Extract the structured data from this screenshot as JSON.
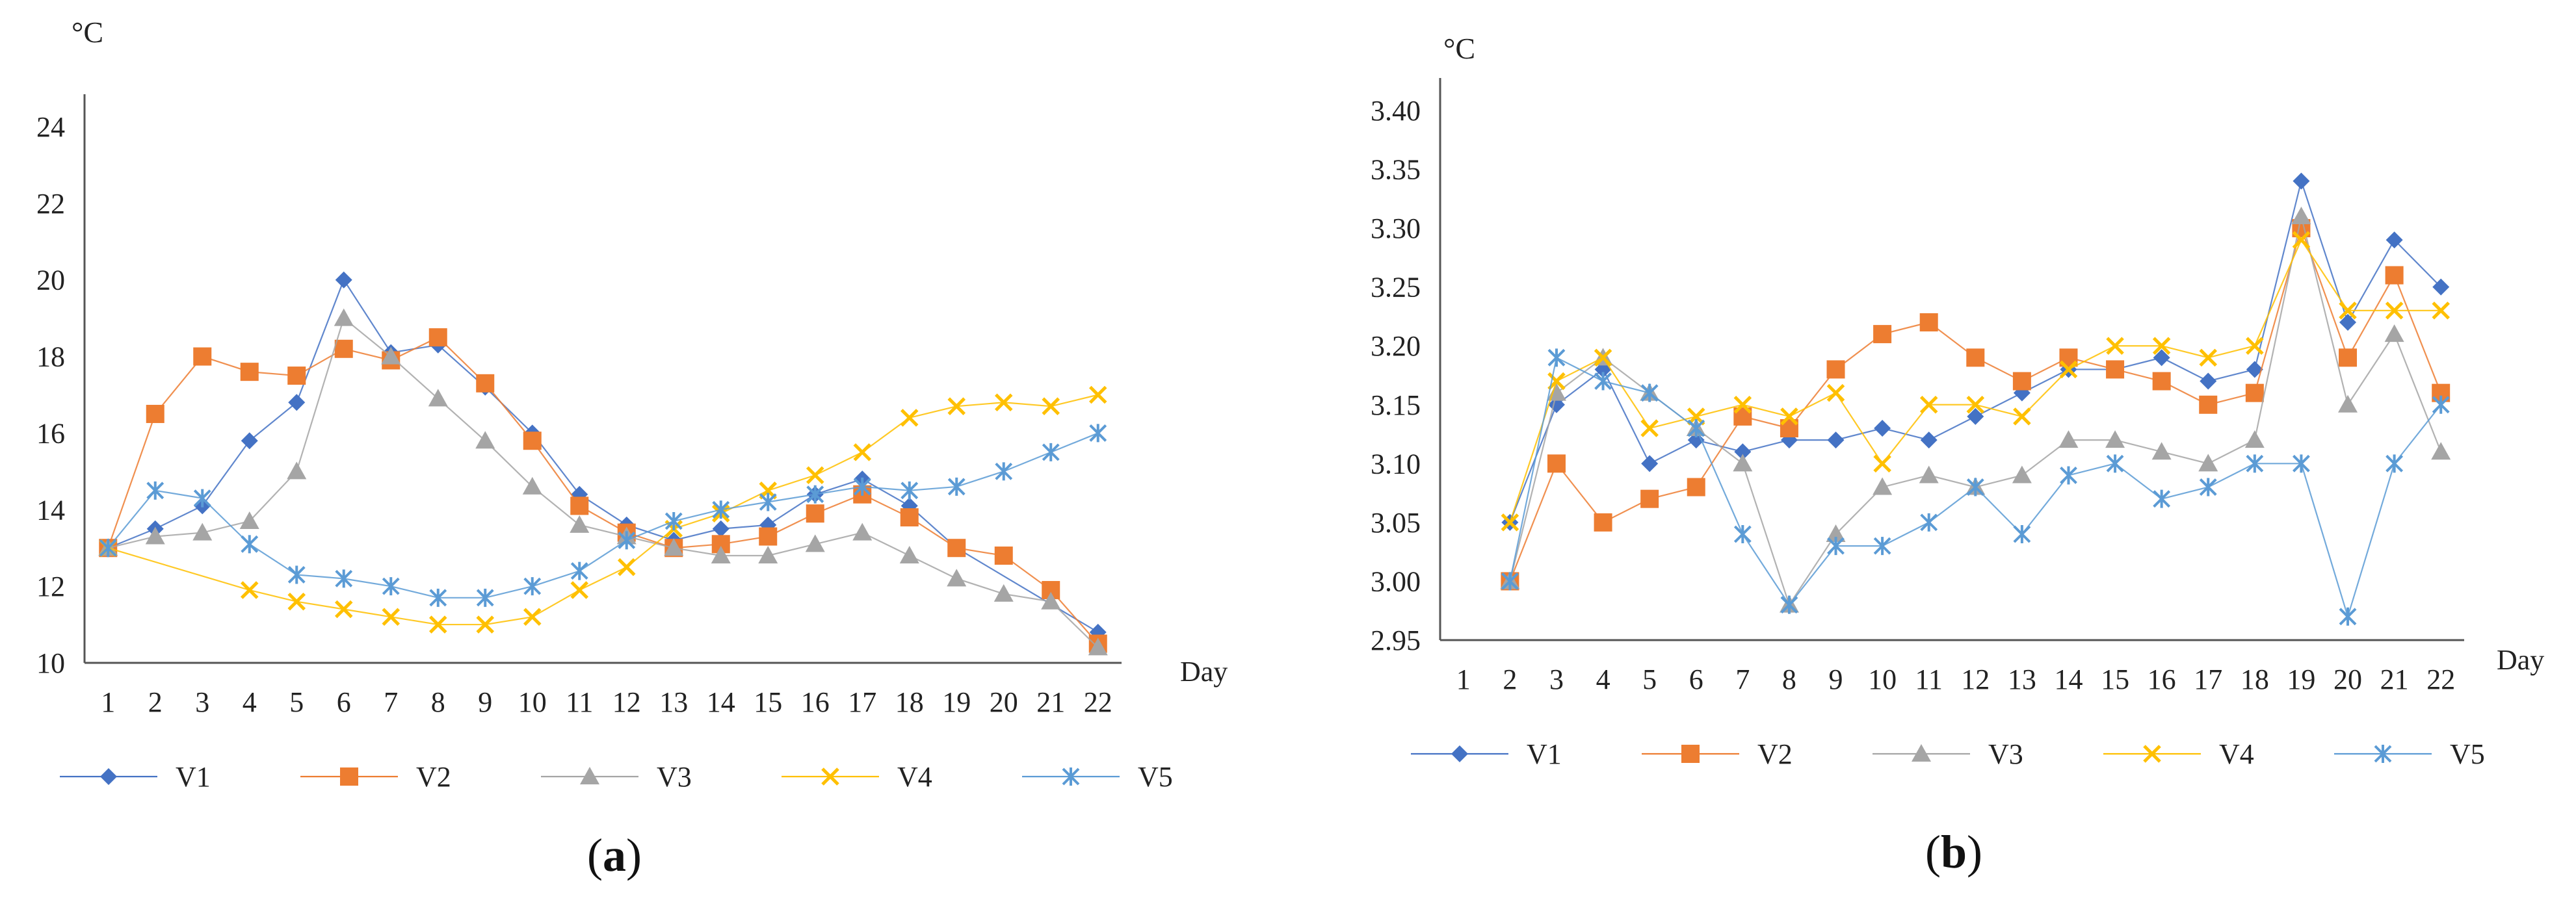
{
  "chart_data": [
    {
      "type": "line",
      "panel_label": "(a)",
      "panel_letter": "a",
      "ylabel": "°C",
      "xlabel": "Day",
      "ylim": [
        10,
        24
      ],
      "yticks": [
        "10",
        "12",
        "14",
        "16",
        "18",
        "20",
        "22",
        "24"
      ],
      "categories": [
        "1",
        "2",
        "3",
        "4",
        "5",
        "6",
        "7",
        "8",
        "9",
        "10",
        "11",
        "12",
        "13",
        "14",
        "15",
        "16",
        "17",
        "18",
        "19",
        "20",
        "21",
        "22"
      ],
      "series": [
        {
          "name": "V1",
          "marker": "diamond",
          "color": "#4472C4",
          "values": [
            13.0,
            13.5,
            14.1,
            15.8,
            16.8,
            20.0,
            18.1,
            18.3,
            17.2,
            16.0,
            14.4,
            13.6,
            13.2,
            13.5,
            13.6,
            14.4,
            14.8,
            14.1,
            13.0,
            null,
            null,
            10.8
          ]
        },
        {
          "name": "V2",
          "marker": "square",
          "color": "#ED7D31",
          "values": [
            13.0,
            16.5,
            18.0,
            17.6,
            17.5,
            18.2,
            17.9,
            18.5,
            17.3,
            15.8,
            14.1,
            13.4,
            13.0,
            13.1,
            13.3,
            13.9,
            14.4,
            13.8,
            13.0,
            12.8,
            11.9,
            10.5
          ]
        },
        {
          "name": "V3",
          "marker": "triangle",
          "color": "#A5A5A5",
          "values": [
            13.0,
            13.3,
            13.4,
            13.7,
            15.0,
            19.0,
            18.0,
            16.9,
            15.8,
            14.6,
            13.6,
            13.3,
            13.0,
            12.8,
            12.8,
            13.1,
            13.4,
            12.8,
            12.2,
            11.8,
            11.6,
            10.4
          ]
        },
        {
          "name": "V4",
          "marker": "x",
          "color": "#FFC000",
          "values": [
            13.0,
            null,
            null,
            11.9,
            11.6,
            11.4,
            11.2,
            11.0,
            11.0,
            11.2,
            11.9,
            12.5,
            13.5,
            13.9,
            14.5,
            14.9,
            15.5,
            16.4,
            16.7,
            16.8,
            16.7,
            17.0
          ]
        },
        {
          "name": "V5",
          "marker": "star",
          "color": "#5B9BD5",
          "values": [
            13.0,
            14.5,
            14.3,
            13.1,
            12.3,
            12.2,
            12.0,
            11.7,
            11.7,
            12.0,
            12.4,
            13.2,
            13.7,
            14.0,
            14.2,
            14.4,
            14.6,
            14.5,
            14.6,
            15.0,
            15.5,
            16.0
          ]
        }
      ]
    },
    {
      "type": "line",
      "panel_label": "(b)",
      "panel_letter": "b",
      "ylabel": "°C",
      "xlabel": "Day",
      "ylim": [
        2.95,
        3.4
      ],
      "yticks": [
        "2.95",
        "3.00",
        "3.05",
        "3.10",
        "3.15",
        "3.20",
        "3.25",
        "3.30",
        "3.35",
        "3.40"
      ],
      "categories": [
        "1",
        "2",
        "3",
        "4",
        "5",
        "6",
        "7",
        "8",
        "9",
        "10",
        "11",
        "12",
        "13",
        "14",
        "15",
        "16",
        "17",
        "18",
        "19",
        "20",
        "21",
        "22"
      ],
      "series": [
        {
          "name": "V1",
          "marker": "diamond",
          "color": "#4472C4",
          "values": [
            null,
            3.05,
            3.15,
            3.18,
            3.1,
            3.12,
            3.11,
            3.12,
            3.12,
            3.13,
            3.12,
            3.14,
            3.16,
            3.18,
            3.18,
            3.19,
            3.17,
            3.18,
            3.34,
            3.22,
            3.29,
            3.25
          ]
        },
        {
          "name": "V2",
          "marker": "square",
          "color": "#ED7D31",
          "values": [
            null,
            3.0,
            3.1,
            3.05,
            3.07,
            3.08,
            3.14,
            3.13,
            3.18,
            3.21,
            3.22,
            3.19,
            3.17,
            3.19,
            3.18,
            3.17,
            3.15,
            3.16,
            3.3,
            3.19,
            3.26,
            3.16
          ]
        },
        {
          "name": "V3",
          "marker": "triangle",
          "color": "#A5A5A5",
          "values": [
            null,
            3.0,
            3.16,
            3.19,
            3.16,
            3.13,
            3.1,
            2.98,
            3.04,
            3.08,
            3.09,
            3.08,
            3.09,
            3.12,
            3.12,
            3.11,
            3.1,
            3.12,
            3.31,
            3.15,
            3.21,
            3.11
          ]
        },
        {
          "name": "V4",
          "marker": "x",
          "color": "#FFC000",
          "values": [
            null,
            3.05,
            3.17,
            3.19,
            3.13,
            3.14,
            3.15,
            3.14,
            3.16,
            3.1,
            3.15,
            3.15,
            3.14,
            3.18,
            3.2,
            3.2,
            3.19,
            3.2,
            3.29,
            3.23,
            3.23,
            3.23
          ]
        },
        {
          "name": "V5",
          "marker": "star",
          "color": "#5B9BD5",
          "values": [
            null,
            3.0,
            3.19,
            3.17,
            3.16,
            3.13,
            3.04,
            2.98,
            3.03,
            3.03,
            3.05,
            3.08,
            3.04,
            3.09,
            3.1,
            3.07,
            3.08,
            3.1,
            3.1,
            2.97,
            3.1,
            3.15
          ]
        }
      ]
    }
  ]
}
